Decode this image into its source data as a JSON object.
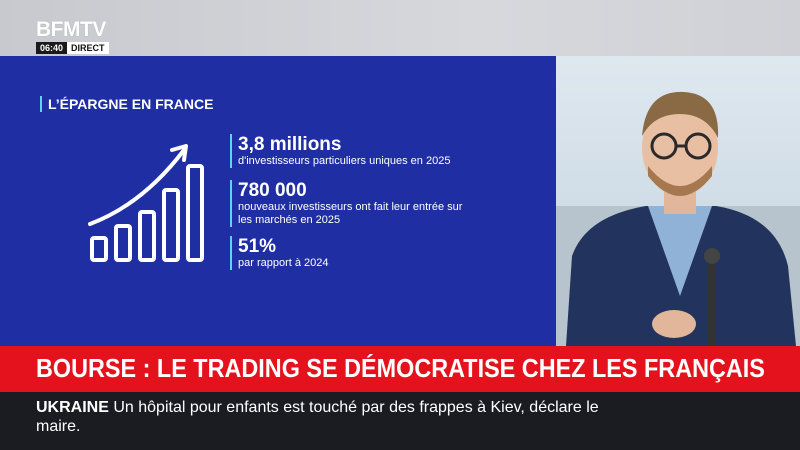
{
  "header": {
    "channel_logo": "BFMTV",
    "time": "06:40",
    "live_label": "DIRECT"
  },
  "infographic": {
    "title": "L’ÉPARGNE EN FRANCE",
    "icon": "rising-bar-chart-arrow-icon",
    "accent_color": "#5fd3f2",
    "background_color": "#1f2fa3",
    "stats": [
      {
        "value": "3,8 millions",
        "description": "d'investisseurs particuliers uniques en 2025"
      },
      {
        "value": "780 000",
        "description": "nouveaux investisseurs ont fait leur entrée sur les marchés en 2025"
      },
      {
        "value": "51%",
        "description": "par rapport à 2024"
      }
    ]
  },
  "headline": {
    "text": "BOURSE : LE TRADING SE DÉMOCRATISE CHEZ LES FRANÇAIS",
    "background_color": "#e4121c"
  },
  "ticker": {
    "topic": "UKRAINE",
    "text": "Un hôpital pour enfants est touché par des frappes à Kiev, déclare le maire."
  }
}
